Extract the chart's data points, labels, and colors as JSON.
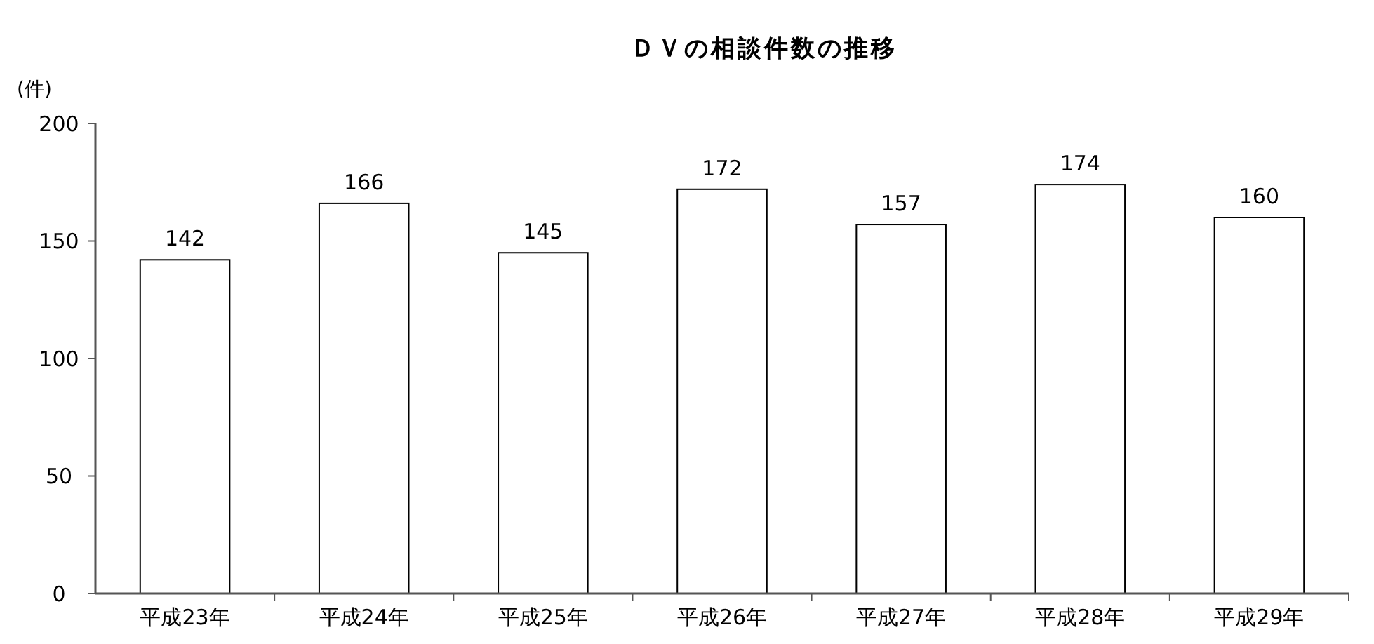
{
  "chart_data": {
    "type": "bar",
    "title": "ＤＶの相談件数の推移",
    "ylabel": "(件)",
    "categories": [
      "平成23年",
      "平成24年",
      "平成25年",
      "平成26年",
      "平成27年",
      "平成28年",
      "平成29年"
    ],
    "values": [
      142,
      166,
      145,
      172,
      157,
      174,
      160
    ],
    "color": "#ffffff",
    "ylim": [
      0,
      200
    ],
    "yticks": [
      0,
      50,
      100,
      150,
      200
    ],
    "grid": false,
    "data_labels": true
  }
}
